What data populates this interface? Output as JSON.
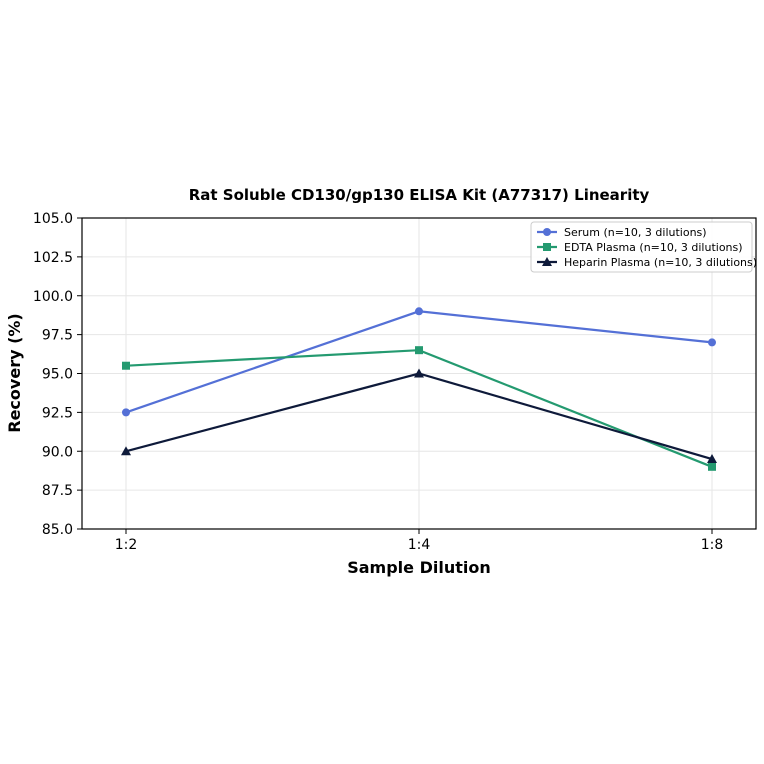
{
  "chart_data": {
    "type": "line",
    "title": "Rat Soluble CD130/gp130 ELISA Kit (A77317) Linearity",
    "xlabel": "Sample Dilution",
    "ylabel": "Recovery (%)",
    "categories": [
      "1:2",
      "1:4",
      "1:8"
    ],
    "ylim": [
      85.0,
      105.0
    ],
    "yticks": [
      "85.0",
      "87.5",
      "90.0",
      "92.5",
      "95.0",
      "97.5",
      "100.0",
      "102.5",
      "105.0"
    ],
    "grid": true,
    "legend_position": "top-right",
    "series": [
      {
        "name": "Serum (n=10, 3 dilutions)",
        "values": [
          92.5,
          99.0,
          97.0
        ],
        "color": "#5470d6",
        "marker": "circle"
      },
      {
        "name": "EDTA Plasma (n=10, 3 dilutions)",
        "values": [
          95.5,
          96.5,
          89.0
        ],
        "color": "#249a70",
        "marker": "square"
      },
      {
        "name": "Heparin Plasma (n=10, 3 dilutions)",
        "values": [
          90.0,
          95.0,
          89.5
        ],
        "color": "#0e1a3a",
        "marker": "triangle"
      }
    ]
  }
}
